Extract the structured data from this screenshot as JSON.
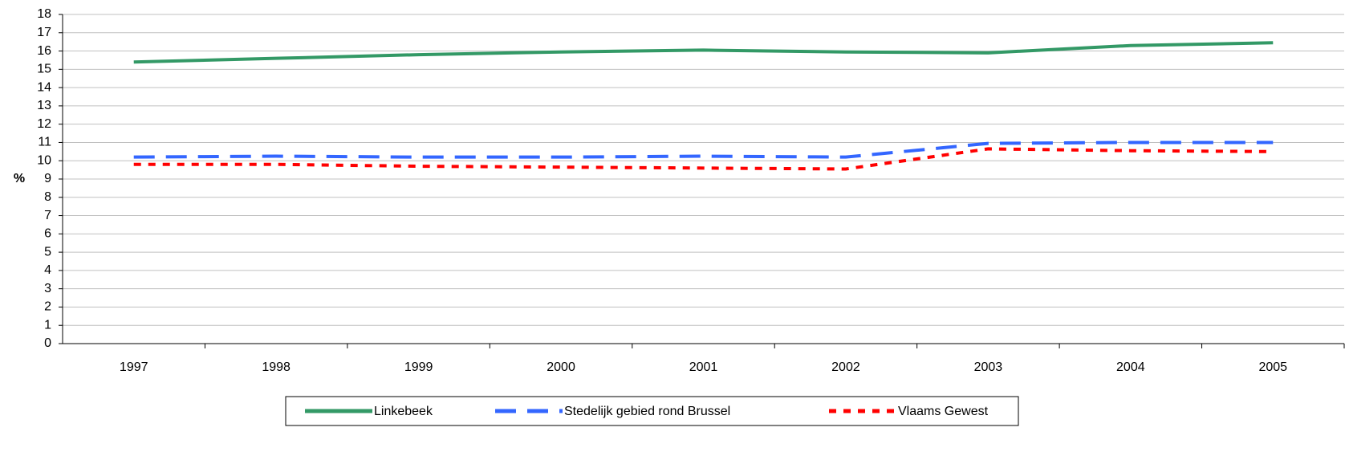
{
  "chart_data": {
    "type": "line",
    "y_label": "%",
    "categories": [
      "1997",
      "1998",
      "1999",
      "2000",
      "2001",
      "2002",
      "2003",
      "2004",
      "2005"
    ],
    "series": [
      {
        "name": "Linkebeek",
        "color": "#339966",
        "dash": "solid",
        "values": [
          15.4,
          15.6,
          15.8,
          15.95,
          16.05,
          15.95,
          15.9,
          16.3,
          16.45
        ]
      },
      {
        "name": "Stedelijk gebied rond Brussel",
        "color": "#3366ff",
        "dash": "long",
        "values": [
          10.2,
          10.25,
          10.2,
          10.2,
          10.25,
          10.2,
          10.95,
          11.0,
          11.0
        ]
      },
      {
        "name": "Vlaams Gewest",
        "color": "#ff0000",
        "dash": "short",
        "values": [
          9.8,
          9.8,
          9.7,
          9.65,
          9.6,
          9.55,
          10.65,
          10.55,
          10.5
        ]
      }
    ],
    "ylim": [
      0,
      18
    ],
    "yticks": [
      0,
      1,
      2,
      3,
      4,
      5,
      6,
      7,
      8,
      9,
      10,
      11,
      12,
      13,
      14,
      15,
      16,
      17,
      18
    ],
    "grid": true,
    "legend": "bottom"
  }
}
